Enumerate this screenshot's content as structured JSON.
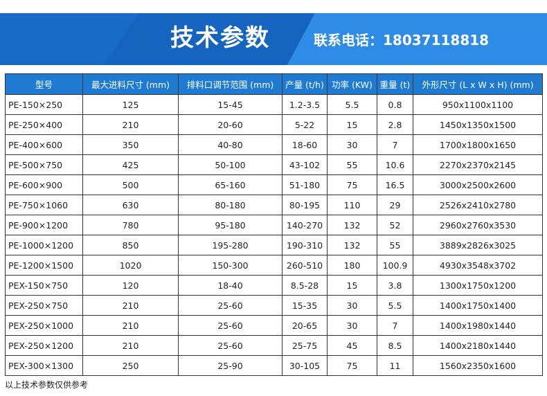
{
  "banner": {
    "title": "技术参数",
    "contact": "联系电话：18037118818",
    "colors": {
      "dark_blue": "#1565c0",
      "light_blue": "#2e8be6",
      "grey": "#e9e9e9"
    }
  },
  "table": {
    "header_color": "#1f7ad1",
    "headers": [
      "型号",
      "最大进料尺寸 (mm)",
      "排料口调节范围 (mm)",
      "产量 (t/h)",
      "功率 (KW)",
      "重量 (t)",
      "外形尺寸 (L x W x H) (mm)"
    ],
    "rows": [
      [
        "PE-150×250",
        "125",
        "15-45",
        "1.2-3.5",
        "5.5",
        "0.8",
        "950x1100x1100"
      ],
      [
        "PE-250×400",
        "210",
        "20-60",
        "5-22",
        "15",
        "2.8",
        "1450x1350x1500"
      ],
      [
        "PE-400×600",
        "350",
        "40-80",
        "18-60",
        "30",
        "7",
        "1700x1800x1650"
      ],
      [
        "PE-500×750",
        "425",
        "50-100",
        "43-102",
        "55",
        "10.6",
        "2270x2370x2145"
      ],
      [
        "PE-600×900",
        "500",
        "65-160",
        "51-180",
        "75",
        "16.5",
        "3000x2500x2600"
      ],
      [
        "PE-750×1060",
        "630",
        "80-180",
        "80-195",
        "110",
        "29",
        "2526x2410x2780"
      ],
      [
        "PE-900×1200",
        "780",
        "95-180",
        "140-270",
        "132",
        "52",
        "2960x2760x3530"
      ],
      [
        "PE-1000×1200",
        "850",
        "195-280",
        "190-310",
        "132",
        "55",
        "3889x2826x3025"
      ],
      [
        "PE-1200×1500",
        "1020",
        "150-300",
        "260-510",
        "180",
        "100.9",
        "4930x3548x3702"
      ],
      [
        "PEX-150×750",
        "120",
        "18-40",
        "8.5-28",
        "15",
        "3.8",
        "1300x1750x1200"
      ],
      [
        "PEX-250×750",
        "210",
        "25-60",
        "15-35",
        "30",
        "5.5",
        "1400x1750x1400"
      ],
      [
        "PEX-250×1000",
        "210",
        "25-60",
        "20-65",
        "30",
        "7",
        "1400x1980x1440"
      ],
      [
        "PEX-250×1200",
        "210",
        "25-60",
        "25-75",
        "45",
        "8.5",
        "1400x2180x1440"
      ],
      [
        "PEX-300×1300",
        "250",
        "25-90",
        "30-105",
        "75",
        "11",
        "1560x2350x1600"
      ]
    ]
  },
  "footnote": "以上技术参数仅供参考"
}
